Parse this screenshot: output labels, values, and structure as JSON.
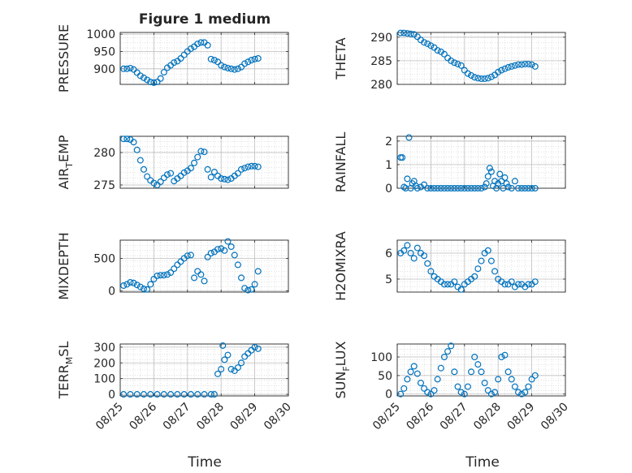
{
  "figure_title": "Figure 1 medium",
  "xlabel": "Time",
  "x_ticks": [
    "08/25",
    "08/26",
    "08/27",
    "08/28",
    "08/29",
    "08/30"
  ],
  "marker_color": "#0072BD",
  "chart_data": [
    {
      "type": "scatter",
      "name": "PRESSURE",
      "ylabel": "PRESSURE",
      "ylabel_sub": "",
      "ylim": [
        855,
        1005
      ],
      "yticks": [
        900,
        950,
        1000
      ],
      "grid": true,
      "x": [
        0.1,
        0.2,
        0.3,
        0.4,
        0.5,
        0.6,
        0.7,
        0.8,
        0.9,
        1.0,
        1.1,
        1.2,
        1.3,
        1.4,
        1.5,
        1.6,
        1.7,
        1.8,
        1.9,
        2.0,
        2.1,
        2.2,
        2.3,
        2.4,
        2.5,
        2.6,
        2.7,
        2.8,
        2.9,
        3.0,
        3.1,
        3.2,
        3.3,
        3.4,
        3.5,
        3.6,
        3.7,
        3.8,
        3.9,
        4.0,
        4.1
      ],
      "y": [
        900,
        900,
        902,
        898,
        889,
        880,
        874,
        868,
        862,
        860,
        862,
        872,
        890,
        903,
        910,
        918,
        922,
        930,
        940,
        950,
        958,
        964,
        972,
        976,
        976,
        968,
        928,
        925,
        920,
        910,
        905,
        902,
        900,
        898,
        900,
        905,
        915,
        920,
        925,
        928,
        930
      ]
    },
    {
      "type": "scatter",
      "name": "THETA",
      "ylabel": "THETA",
      "ylabel_sub": "",
      "ylim": [
        280,
        291
      ],
      "yticks": [
        280,
        285,
        290
      ],
      "grid": true,
      "x": [
        0.1,
        0.2,
        0.3,
        0.4,
        0.5,
        0.6,
        0.7,
        0.8,
        0.9,
        1.0,
        1.1,
        1.2,
        1.3,
        1.4,
        1.5,
        1.6,
        1.7,
        1.8,
        1.9,
        2.0,
        2.1,
        2.2,
        2.3,
        2.4,
        2.5,
        2.6,
        2.7,
        2.8,
        2.9,
        3.0,
        3.1,
        3.2,
        3.3,
        3.4,
        3.5,
        3.6,
        3.7,
        3.8,
        3.9,
        4.0,
        4.1
      ],
      "y": [
        290.9,
        290.9,
        290.8,
        290.7,
        290.6,
        290.1,
        289.4,
        288.9,
        288.6,
        288.2,
        287.8,
        287.2,
        286.9,
        286.4,
        285.6,
        285.0,
        284.6,
        284.3,
        284.0,
        283.0,
        282.3,
        281.9,
        281.5,
        281.3,
        281.2,
        281.2,
        281.3,
        281.6,
        282.0,
        282.6,
        283.0,
        283.3,
        283.6,
        283.8,
        284.0,
        284.2,
        284.2,
        284.3,
        284.3,
        284.2,
        283.8
      ]
    },
    {
      "type": "scatter",
      "name": "AIR_TEMP",
      "ylabel": "AIR",
      "ylabel_sub": "T",
      "ylabel_tail": "EMP",
      "ylim": [
        274.5,
        282.5
      ],
      "yticks": [
        275,
        280
      ],
      "grid": true,
      "x": [
        0.1,
        0.2,
        0.3,
        0.4,
        0.5,
        0.6,
        0.7,
        0.8,
        0.9,
        1.0,
        1.1,
        1.2,
        1.3,
        1.4,
        1.5,
        1.6,
        1.7,
        1.8,
        1.9,
        2.0,
        2.1,
        2.2,
        2.3,
        2.4,
        2.5,
        2.6,
        2.7,
        2.8,
        2.9,
        3.0,
        3.1,
        3.2,
        3.3,
        3.4,
        3.5,
        3.6,
        3.7,
        3.8,
        3.9,
        4.0,
        4.1
      ],
      "y": [
        282.1,
        282.1,
        282.0,
        281.6,
        280.4,
        278.8,
        277.4,
        276.3,
        275.7,
        275.3,
        275.0,
        275.5,
        276.1,
        276.6,
        276.8,
        275.6,
        276.0,
        276.4,
        276.9,
        277.2,
        277.6,
        278.4,
        279.3,
        280.2,
        280.1,
        277.4,
        276.2,
        277.0,
        276.4,
        276.0,
        275.9,
        275.8,
        276.0,
        276.4,
        276.8,
        277.4,
        277.6,
        277.8,
        277.9,
        277.9,
        277.8
      ]
    },
    {
      "type": "scatter",
      "name": "RAINFALL",
      "ylabel": "RAINFALL",
      "ylabel_sub": "",
      "ylim": [
        0,
        2.2
      ],
      "yticks": [
        0,
        1,
        2
      ],
      "grid": true,
      "x": [
        0.1,
        0.15,
        0.2,
        0.25,
        0.3,
        0.35,
        0.4,
        0.45,
        0.5,
        0.55,
        0.6,
        0.7,
        0.8,
        0.9,
        1.0,
        1.1,
        1.2,
        1.3,
        1.4,
        1.5,
        1.6,
        1.7,
        1.8,
        1.9,
        2.0,
        2.1,
        2.2,
        2.3,
        2.4,
        2.5,
        2.6,
        2.65,
        2.7,
        2.75,
        2.8,
        2.85,
        2.9,
        2.95,
        3.0,
        3.05,
        3.1,
        3.15,
        3.2,
        3.25,
        3.3,
        3.4,
        3.5,
        3.6,
        3.7,
        3.8,
        3.9,
        4.0,
        4.1
      ],
      "y": [
        1.3,
        1.3,
        0.05,
        0.0,
        0.4,
        2.15,
        0.0,
        0.2,
        0.3,
        0.1,
        0.0,
        0.05,
        0.15,
        0.0,
        0.0,
        0.0,
        0.0,
        0.0,
        0.0,
        0.0,
        0.0,
        0.0,
        0.0,
        0.0,
        0.0,
        0.0,
        0.0,
        0.0,
        0.0,
        0.0,
        0.05,
        0.2,
        0.5,
        0.85,
        0.7,
        0.1,
        0.3,
        0.0,
        0.2,
        0.6,
        0.3,
        0.0,
        0.45,
        0.2,
        0.05,
        0.0,
        0.3,
        0.0,
        0.0,
        0.0,
        0.0,
        0.0,
        0.0
      ]
    },
    {
      "type": "scatter",
      "name": "MIXDEPTH",
      "ylabel": "MIXDEPTH",
      "ylabel_sub": "",
      "ylim": [
        -20,
        780
      ],
      "yticks": [
        0,
        500
      ],
      "grid": true,
      "x": [
        0.1,
        0.2,
        0.3,
        0.4,
        0.5,
        0.6,
        0.7,
        0.8,
        0.9,
        1.0,
        1.1,
        1.2,
        1.3,
        1.4,
        1.5,
        1.6,
        1.7,
        1.8,
        1.9,
        2.0,
        2.1,
        2.2,
        2.3,
        2.4,
        2.5,
        2.6,
        2.7,
        2.8,
        2.9,
        3.0,
        3.1,
        3.2,
        3.3,
        3.4,
        3.5,
        3.6,
        3.7,
        3.8,
        3.9,
        4.0,
        4.1
      ],
      "y": [
        80,
        100,
        130,
        120,
        90,
        60,
        30,
        20,
        100,
        180,
        230,
        240,
        240,
        250,
        280,
        340,
        400,
        450,
        500,
        540,
        550,
        200,
        300,
        250,
        150,
        520,
        580,
        600,
        640,
        650,
        620,
        760,
        680,
        550,
        400,
        200,
        40,
        10,
        20,
        100,
        300
      ]
    },
    {
      "type": "scatter",
      "name": "H2OMIXRA",
      "ylabel": "H2OMIXRA",
      "ylabel_sub": "",
      "ylim": [
        4.5,
        6.5
      ],
      "yticks": [
        5,
        6
      ],
      "grid": true,
      "x": [
        0.1,
        0.2,
        0.3,
        0.4,
        0.5,
        0.6,
        0.7,
        0.8,
        0.9,
        1.0,
        1.1,
        1.2,
        1.3,
        1.4,
        1.5,
        1.6,
        1.7,
        1.8,
        1.9,
        2.0,
        2.1,
        2.2,
        2.3,
        2.4,
        2.5,
        2.6,
        2.7,
        2.8,
        2.9,
        3.0,
        3.1,
        3.2,
        3.3,
        3.4,
        3.5,
        3.6,
        3.7,
        3.8,
        3.9,
        4.0,
        4.1
      ],
      "y": [
        6.0,
        6.1,
        6.3,
        6.0,
        5.8,
        6.2,
        6.0,
        5.9,
        5.6,
        5.3,
        5.1,
        5.0,
        4.9,
        4.8,
        4.8,
        4.8,
        4.9,
        4.7,
        4.6,
        4.8,
        4.9,
        5.0,
        5.1,
        5.4,
        5.7,
        6.0,
        6.1,
        5.7,
        5.3,
        5.0,
        4.9,
        4.8,
        4.8,
        4.9,
        4.7,
        4.8,
        4.8,
        4.7,
        4.8,
        4.8,
        4.9
      ]
    },
    {
      "type": "scatter",
      "name": "TERR_MSL",
      "ylabel": "TERR",
      "ylabel_sub": "M",
      "ylabel_tail": "SL",
      "ylim": [
        -10,
        320
      ],
      "yticks": [
        0,
        100,
        200,
        300
      ],
      "grid": true,
      "x": [
        0.1,
        0.3,
        0.5,
        0.7,
        0.9,
        1.1,
        1.3,
        1.5,
        1.7,
        1.9,
        2.1,
        2.3,
        2.5,
        2.7,
        2.8,
        2.9,
        3.0,
        3.05,
        3.1,
        3.2,
        3.3,
        3.4,
        3.5,
        3.6,
        3.7,
        3.8,
        3.9,
        4.0,
        4.1
      ],
      "y": [
        0,
        0,
        0,
        0,
        0,
        0,
        0,
        0,
        0,
        0,
        0,
        0,
        0,
        0,
        0,
        130,
        160,
        310,
        220,
        250,
        160,
        150,
        170,
        200,
        240,
        260,
        280,
        300,
        290
      ]
    },
    {
      "type": "scatter",
      "name": "SUN_FLUX",
      "ylabel": "SUN",
      "ylabel_sub": "F",
      "ylabel_tail": "LUX",
      "ylim": [
        -5,
        135
      ],
      "yticks": [
        0,
        50,
        100
      ],
      "grid": true,
      "x": [
        0.1,
        0.2,
        0.3,
        0.4,
        0.5,
        0.6,
        0.7,
        0.8,
        0.9,
        1.0,
        1.1,
        1.2,
        1.3,
        1.4,
        1.5,
        1.6,
        1.7,
        1.8,
        1.9,
        2.0,
        2.1,
        2.2,
        2.3,
        2.4,
        2.5,
        2.6,
        2.7,
        2.8,
        2.9,
        3.0,
        3.1,
        3.2,
        3.3,
        3.4,
        3.5,
        3.6,
        3.7,
        3.8,
        3.9,
        4.0,
        4.1
      ],
      "y": [
        0,
        15,
        40,
        60,
        75,
        55,
        30,
        15,
        5,
        0,
        10,
        40,
        70,
        100,
        115,
        130,
        60,
        20,
        5,
        0,
        20,
        60,
        100,
        80,
        60,
        30,
        10,
        0,
        5,
        40,
        100,
        105,
        60,
        40,
        20,
        5,
        0,
        5,
        20,
        40,
        50
      ]
    }
  ]
}
